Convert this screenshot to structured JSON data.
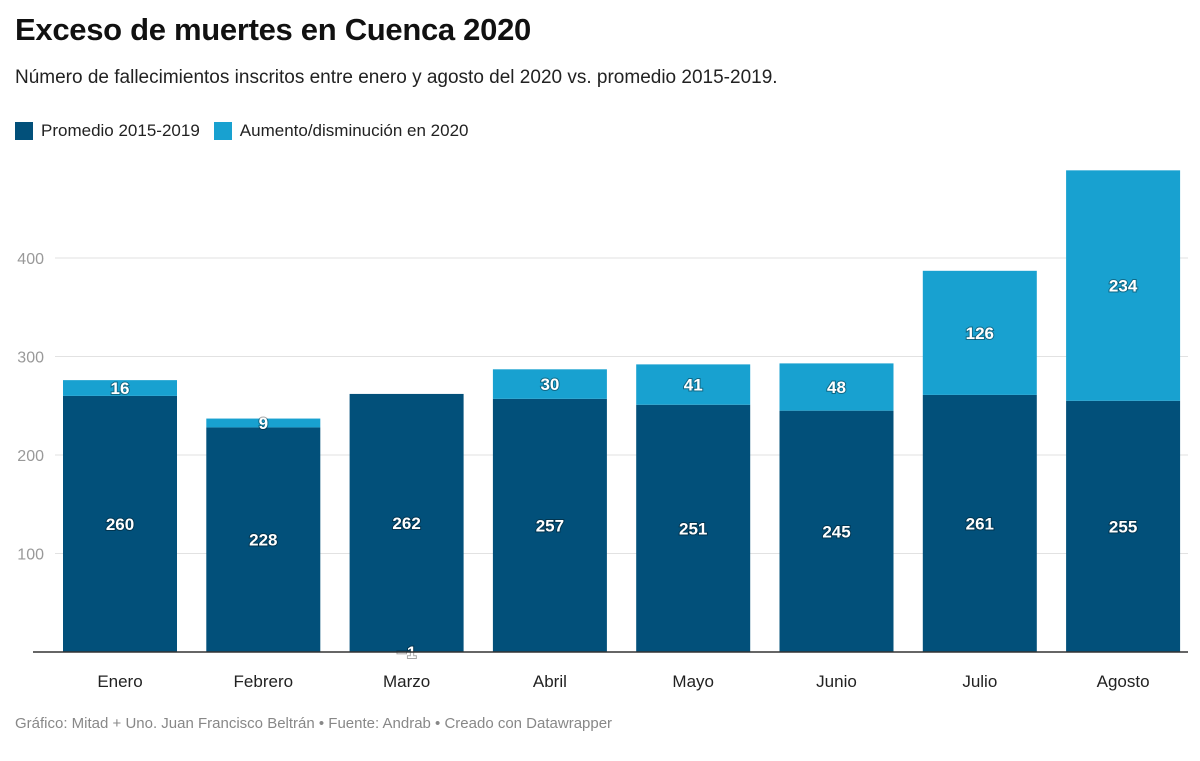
{
  "title": "Exceso de muertes en Cuenca 2020",
  "subtitle": "Número de fallecimientos inscritos entre enero y agosto del 2020 vs. promedio 2015-2019.",
  "legend": [
    {
      "label": "Promedio 2015-2019",
      "color": "#02507a"
    },
    {
      "label": "Aumento/disminución en 2020",
      "color": "#18a1d0"
    }
  ],
  "footer": "Gráfico: Mitad + Uno. Juan Francisco Beltrán • Fuente: Andrab • Creado con Datawrapper",
  "chart_data": {
    "type": "bar",
    "stacked": true,
    "categories": [
      "Enero",
      "Febrero",
      "Marzo",
      "Abril",
      "Mayo",
      "Junio",
      "Julio",
      "Agosto"
    ],
    "series": [
      {
        "name": "Promedio 2015-2019",
        "values": [
          260,
          228,
          262,
          257,
          251,
          245,
          261,
          255
        ],
        "color": "#02507a"
      },
      {
        "name": "Aumento/disminución en 2020",
        "values": [
          16,
          9,
          -1,
          30,
          41,
          48,
          126,
          234
        ],
        "color": "#18a1d0"
      }
    ],
    "value_labels": {
      "Promedio 2015-2019": [
        "260",
        "228",
        "262",
        "257",
        "251",
        "245",
        "261",
        "255"
      ],
      "Aumento/disminución en 2020": [
        "16",
        "9",
        "−1",
        "30",
        "41",
        "48",
        "126",
        "234"
      ]
    },
    "yticks": [
      100,
      200,
      300,
      400
    ],
    "ylim": [
      0,
      490
    ],
    "grid": true,
    "legend_position": "top-left"
  }
}
